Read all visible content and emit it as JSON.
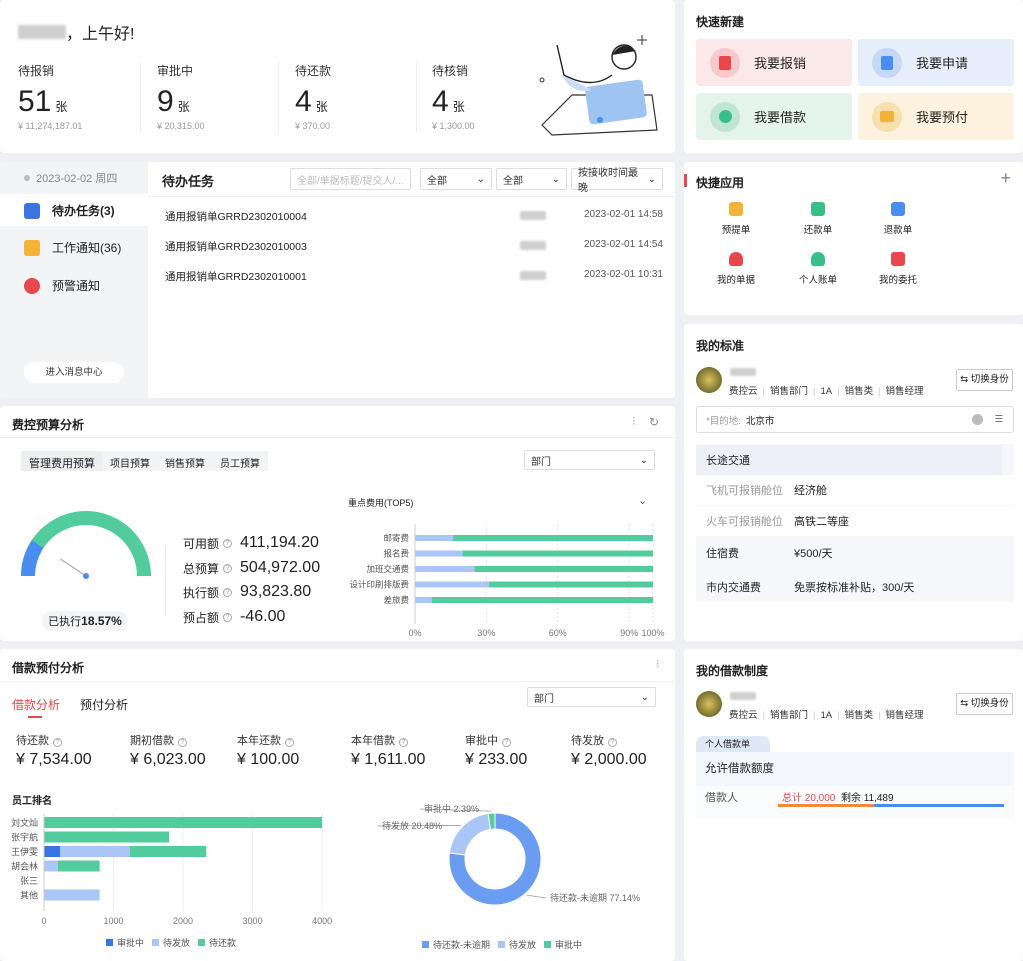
{
  "welcome": {
    "greeting": "，上午好!",
    "stats": [
      {
        "label": "待报销",
        "count": "51",
        "unit": "张",
        "amount": "¥ 11,274,187.01"
      },
      {
        "label": "审批中",
        "count": "9",
        "unit": "张",
        "amount": "¥ 20,315.00"
      },
      {
        "label": "待还款",
        "count": "4",
        "unit": "张",
        "amount": "¥ 370.00"
      },
      {
        "label": "待核销",
        "count": "4",
        "unit": "张",
        "amount": "¥ 1,300.00"
      }
    ]
  },
  "quick_create": {
    "title": "快速新建",
    "buttons": [
      {
        "label": "我要报销",
        "color": "#e8474b",
        "bg": "#fbe9e9"
      },
      {
        "label": "我要申请",
        "color": "#4a8df0",
        "bg": "#e6eefb"
      },
      {
        "label": "我要借款",
        "color": "#3bbf8a",
        "bg": "#e4f4ed"
      },
      {
        "label": "我要预付",
        "color": "#f3b238",
        "bg": "#fdf2dd"
      }
    ]
  },
  "tasks": {
    "date": "2023-02-02 周四",
    "side_items": [
      {
        "label": "待办任务(3)",
        "color": "#3a74e0"
      },
      {
        "label": "工作通知(36)",
        "color": "#f3b238"
      },
      {
        "label": "预警通知",
        "color": "#e8474b"
      }
    ],
    "enter_btn": "进入消息中心",
    "title": "待办任务",
    "search_placeholder": "全部/单据标题/提交人/...",
    "filter1": "全部",
    "filter2": "全部",
    "sort": "按接收时间最晚",
    "rows": [
      {
        "title": "通用报销单GRRD2302010004",
        "time": "2023-02-01 14:58"
      },
      {
        "title": "通用报销单GRRD2302010003",
        "time": "2023-02-01 14:54"
      },
      {
        "title": "通用报销单GRRD2302010001",
        "time": "2023-02-01 10:31"
      }
    ]
  },
  "apps": {
    "title": "快捷应用",
    "items": [
      {
        "label": "预提单",
        "color": "#f3b238"
      },
      {
        "label": "还款单",
        "color": "#3bbf8a"
      },
      {
        "label": "退款单",
        "color": "#4a8df0"
      },
      {
        "label": "我的单据",
        "color": "#e8474b"
      },
      {
        "label": "个人账单",
        "color": "#3bbf8a"
      },
      {
        "label": "我的委托",
        "color": "#e8474b"
      }
    ]
  },
  "standard": {
    "title": "我的标准",
    "user_tags": [
      "费控云",
      "销售部门",
      "1A",
      "销售类",
      "销售经理"
    ],
    "switch_btn": "切换身份",
    "dest_label": "*目的地:",
    "dest_value": "北京市",
    "long_trip": "长途交通",
    "plane_label": "飞机可报销舱位",
    "plane_value": "经济舱",
    "train_label": "火车可报销舱位",
    "train_value": "高铁二等座",
    "hotel_label": "住宿费",
    "hotel_value": "¥500/天",
    "city_label": "市内交通费",
    "city_value": "免票按标准补贴，300/天"
  },
  "budget": {
    "title": "费控预算分析",
    "tabs": [
      "管理费用预算",
      "项目预算",
      "销售预算",
      "员工预算"
    ],
    "dept_select": "部门",
    "executed_label": "已执行",
    "executed_pct": "18.57%",
    "executed_value": 18.57,
    "rows": [
      {
        "label": "可用额",
        "value": "411,194.20"
      },
      {
        "label": "总预算",
        "value": "504,972.00"
      },
      {
        "label": "执行额",
        "value": "93,823.80"
      },
      {
        "label": "预占额",
        "value": "-46.00"
      }
    ]
  },
  "loan": {
    "title": "借款预付分析",
    "tabs": [
      "借款分析",
      "预付分析"
    ],
    "dept_select": "部门",
    "stats": [
      {
        "label": "待还款",
        "value": "¥ 7,534.00"
      },
      {
        "label": "期初借款",
        "value": "¥ 6,023.00"
      },
      {
        "label": "本年还款",
        "value": "¥ 100.00"
      },
      {
        "label": "本年借款",
        "value": "¥ 1,611.00"
      },
      {
        "label": "审批中",
        "value": "¥ 233.00"
      },
      {
        "label": "待发放",
        "value": "¥ 2,000.00"
      }
    ],
    "bar_legend": [
      "审批中",
      "待发放",
      "待还款"
    ],
    "donut_legend": [
      "待还款-未逾期",
      "待发放",
      "审批中"
    ]
  },
  "loan_system": {
    "title": "我的借款制度",
    "user_tags": [
      "费控云",
      "销售部门",
      "1A",
      "销售类",
      "销售经理"
    ],
    "switch_btn": "切换身份",
    "tab": "个人借款单",
    "quota_title": "允许借款额度",
    "borrower_label": "借款人",
    "total_text": "总计 20,000",
    "remain_text": "剩余 11,489",
    "total": 20000,
    "remain": 11489
  },
  "chart_data": [
    {
      "type": "bar",
      "orientation": "horizontal",
      "title": "重点费用(TOP5)",
      "categories": [
        "邮寄费",
        "报名费",
        "加班交通费",
        "设计印刷排版费",
        "差旅费"
      ],
      "series": [
        {
          "values": [
            16,
            20,
            25,
            31,
            7
          ],
          "color": "#a9c6f7"
        },
        {
          "values": [
            84,
            80,
            75,
            69,
            93
          ],
          "color": "#52cc9c"
        }
      ],
      "xticks": [
        "0%",
        "30%",
        "60%",
        "90%",
        "100%"
      ],
      "xlim": [
        0,
        100
      ]
    },
    {
      "type": "bar",
      "orientation": "horizontal",
      "stacked": true,
      "title": "员工排名",
      "categories": [
        "刘文灿",
        "张宇航",
        "王伊雯",
        "胡会林",
        "张三",
        "其他"
      ],
      "series": [
        {
          "name": "审批中",
          "values": [
            0,
            0,
            233,
            0,
            0,
            0
          ],
          "color": "#3a74e0"
        },
        {
          "name": "待发放",
          "values": [
            0,
            0,
            1000,
            200,
            0,
            800
          ],
          "color": "#a9c6f7"
        },
        {
          "name": "待还款",
          "values": [
            4000,
            1800,
            1100,
            600,
            0,
            0
          ],
          "color": "#52cc9c"
        }
      ],
      "xticks": [
        0,
        1000,
        2000,
        3000,
        4000
      ],
      "xlim": [
        0,
        4200
      ]
    },
    {
      "type": "pie",
      "donut": true,
      "slices": [
        {
          "label": "待还款-未逾期",
          "text": "待还款-未逾期 77.14%",
          "value": 77.14,
          "color": "#6a9cf2"
        },
        {
          "label": "待发放",
          "text": "待发放 20.48%",
          "value": 20.48,
          "color": "#a9c6f7"
        },
        {
          "label": "审批中",
          "text": "审批中 2.39%",
          "value": 2.39,
          "color": "#52cc9c"
        }
      ]
    }
  ]
}
